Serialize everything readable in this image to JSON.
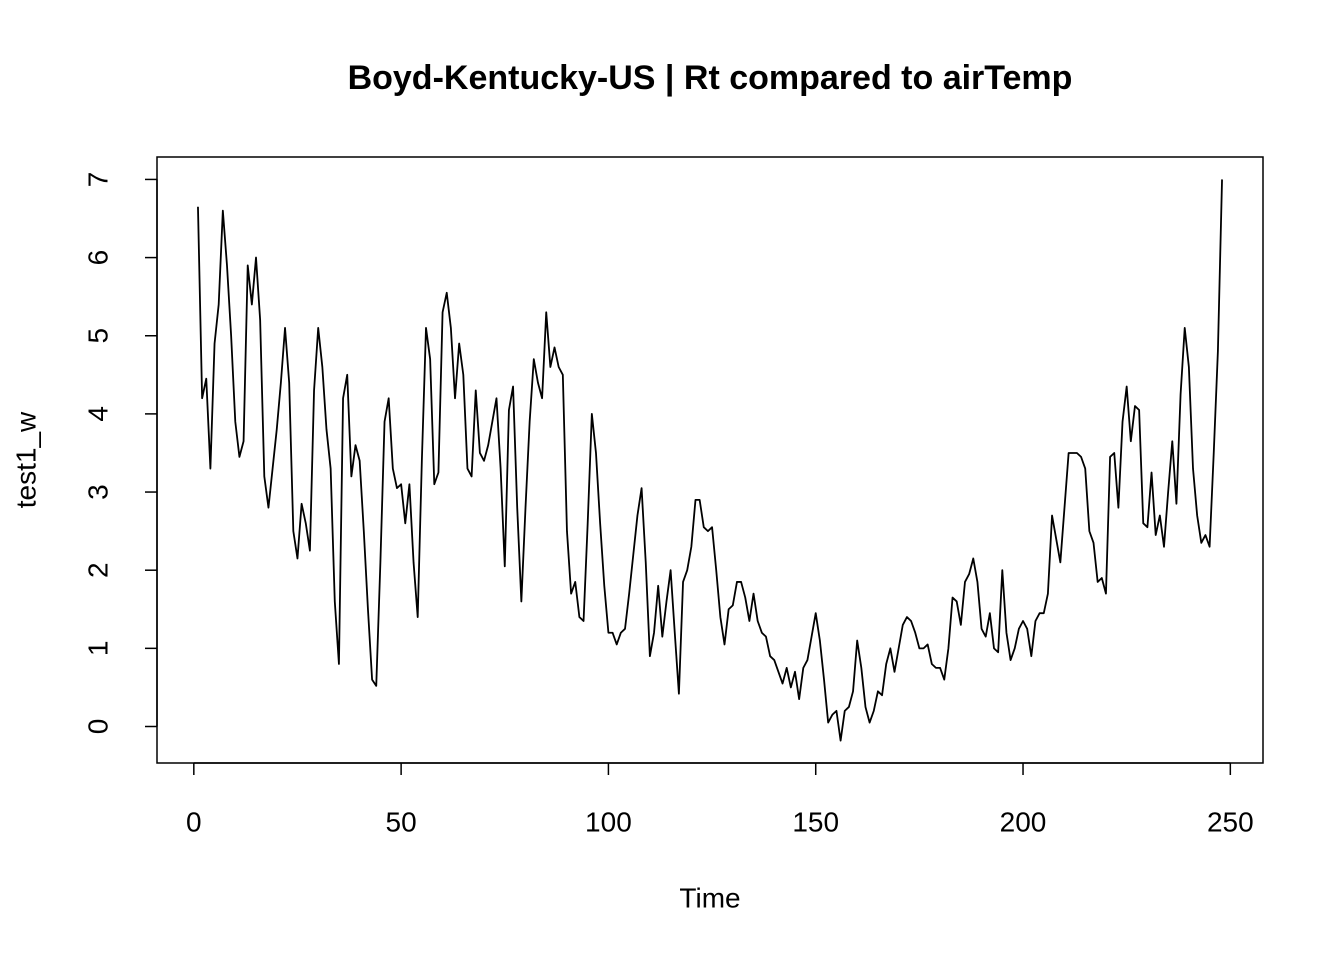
{
  "chart_data": {
    "type": "line",
    "title": "Boyd-Kentucky-US | Rt compared to airTemp",
    "x_label": "Time",
    "y_label": "test1_w",
    "color": "#000000",
    "x": [
      1,
      2,
      3,
      4,
      5,
      6,
      7,
      8,
      9,
      10,
      11,
      12,
      13,
      14,
      15,
      16,
      17,
      18,
      19,
      20,
      21,
      22,
      23,
      24,
      25,
      26,
      27,
      28,
      29,
      30,
      31,
      32,
      33,
      34,
      35,
      36,
      37,
      38,
      39,
      40,
      41,
      42,
      43,
      44,
      45,
      46,
      47,
      48,
      49,
      50,
      51,
      52,
      53,
      54,
      55,
      56,
      57,
      58,
      59,
      60,
      61,
      62,
      63,
      64,
      65,
      66,
      67,
      68,
      69,
      70,
      71,
      72,
      73,
      74,
      75,
      76,
      77,
      78,
      79,
      80,
      81,
      82,
      83,
      84,
      85,
      86,
      87,
      88,
      89,
      90,
      91,
      92,
      93,
      94,
      95,
      96,
      97,
      98,
      99,
      100,
      101,
      102,
      103,
      104,
      105,
      106,
      107,
      108,
      109,
      110,
      111,
      112,
      113,
      114,
      115,
      116,
      117,
      118,
      119,
      120,
      121,
      122,
      123,
      124,
      125,
      126,
      127,
      128,
      129,
      130,
      131,
      132,
      133,
      134,
      135,
      136,
      137,
      138,
      139,
      140,
      141,
      142,
      143,
      144,
      145,
      146,
      147,
      148,
      149,
      150,
      151,
      152,
      153,
      154,
      155,
      156,
      157,
      158,
      159,
      160,
      161,
      162,
      163,
      164,
      165,
      166,
      167,
      168,
      169,
      170,
      171,
      172,
      173,
      174,
      175,
      176,
      177,
      178,
      179,
      180,
      181,
      182,
      183,
      184,
      185,
      186,
      187,
      188,
      189,
      190,
      191,
      192,
      193,
      194,
      195,
      196,
      197,
      198,
      199,
      200,
      201,
      202,
      203,
      204,
      205,
      206,
      207,
      208,
      209,
      210,
      211,
      212,
      213,
      214,
      215,
      216,
      217,
      218,
      219,
      220,
      221,
      222,
      223,
      224,
      225,
      226,
      227,
      228,
      229,
      230,
      231,
      232,
      233,
      234,
      235,
      236,
      237,
      238,
      239,
      240,
      241,
      242,
      243,
      244,
      245,
      246,
      247,
      248
    ],
    "values": [
      6.65,
      4.2,
      4.45,
      3.3,
      4.9,
      5.4,
      6.6,
      5.9,
      5.0,
      3.9,
      3.45,
      3.65,
      5.9,
      5.4,
      6.0,
      5.2,
      3.2,
      2.8,
      3.3,
      3.8,
      4.4,
      5.1,
      4.4,
      2.5,
      2.15,
      2.85,
      2.6,
      2.25,
      4.3,
      5.1,
      4.6,
      3.8,
      3.3,
      1.6,
      0.8,
      4.2,
      4.5,
      3.2,
      3.6,
      3.4,
      2.5,
      1.5,
      0.6,
      0.52,
      2.1,
      3.9,
      4.2,
      3.3,
      3.05,
      3.1,
      2.6,
      3.1,
      2.1,
      1.4,
      3.4,
      5.1,
      4.7,
      3.1,
      3.25,
      5.3,
      5.55,
      5.1,
      4.2,
      4.9,
      4.5,
      3.3,
      3.2,
      4.3,
      3.5,
      3.4,
      3.6,
      3.9,
      4.2,
      3.3,
      2.05,
      4.05,
      4.35,
      2.8,
      1.6,
      2.8,
      3.9,
      4.7,
      4.4,
      4.2,
      5.3,
      4.6,
      4.85,
      4.6,
      4.5,
      2.5,
      1.7,
      1.85,
      1.4,
      1.35,
      2.6,
      4.0,
      3.5,
      2.6,
      1.8,
      1.2,
      1.2,
      1.05,
      1.2,
      1.25,
      1.7,
      2.2,
      2.7,
      3.05,
      2.1,
      0.9,
      1.2,
      1.8,
      1.15,
      1.6,
      2.0,
      1.2,
      0.42,
      1.85,
      2.0,
      2.3,
      2.9,
      2.9,
      2.55,
      2.5,
      2.55,
      2.0,
      1.4,
      1.05,
      1.5,
      1.55,
      1.85,
      1.85,
      1.65,
      1.35,
      1.7,
      1.35,
      1.2,
      1.15,
      0.9,
      0.85,
      0.7,
      0.55,
      0.75,
      0.5,
      0.7,
      0.35,
      0.75,
      0.85,
      1.15,
      1.45,
      1.1,
      0.6,
      0.05,
      0.15,
      0.2,
      -0.18,
      0.2,
      0.25,
      0.45,
      1.1,
      0.75,
      0.25,
      0.05,
      0.2,
      0.45,
      0.4,
      0.8,
      1.0,
      0.7,
      1.0,
      1.3,
      1.4,
      1.35,
      1.2,
      1.0,
      1.0,
      1.05,
      0.8,
      0.75,
      0.75,
      0.6,
      1.0,
      1.65,
      1.6,
      1.3,
      1.85,
      1.95,
      2.15,
      1.85,
      1.25,
      1.15,
      1.45,
      1.0,
      0.95,
      2.0,
      1.2,
      0.85,
      1.0,
      1.25,
      1.35,
      1.25,
      0.9,
      1.35,
      1.45,
      1.45,
      1.7,
      2.7,
      2.4,
      2.1,
      2.8,
      3.5,
      3.5,
      3.5,
      3.45,
      3.3,
      2.5,
      2.35,
      1.85,
      1.9,
      1.7,
      3.45,
      3.5,
      2.8,
      3.9,
      4.35,
      3.65,
      4.1,
      4.05,
      2.6,
      2.55,
      3.25,
      2.45,
      2.7,
      2.3,
      3.0,
      3.65,
      2.85,
      4.25,
      5.1,
      4.6,
      3.3,
      2.7,
      2.35,
      2.45,
      2.3,
      3.5,
      4.8,
      7.0
    ],
    "xlim": [
      -8.88,
      257.88
    ],
    "ylim": [
      -0.467,
      7.287
    ],
    "xticks": [
      0,
      50,
      100,
      150,
      200,
      250
    ],
    "yticks": [
      0,
      1,
      2,
      3,
      4,
      5,
      6,
      7
    ]
  }
}
